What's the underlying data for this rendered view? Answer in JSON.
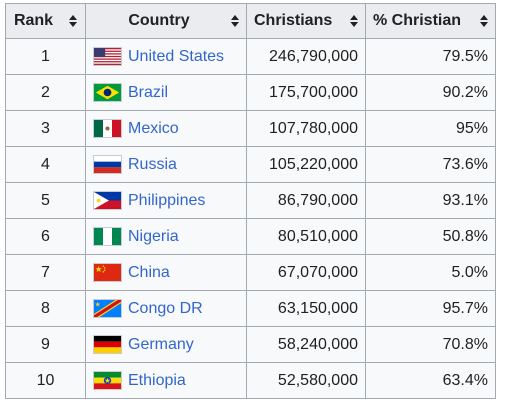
{
  "table": {
    "headers": {
      "rank": "Rank",
      "country": "Country",
      "christians": "Christians",
      "pct": "% Christian"
    },
    "rows": [
      {
        "rank": "1",
        "country": "United States",
        "christians": "246,790,000",
        "pct": "79.5%",
        "flag": "us-flag-icon"
      },
      {
        "rank": "2",
        "country": "Brazil",
        "christians": "175,700,000",
        "pct": "90.2%",
        "flag": "brazil-flag-icon"
      },
      {
        "rank": "3",
        "country": "Mexico",
        "christians": "107,780,000",
        "pct": "95%",
        "flag": "mexico-flag-icon"
      },
      {
        "rank": "4",
        "country": "Russia",
        "christians": "105,220,000",
        "pct": "73.6%",
        "flag": "russia-flag-icon"
      },
      {
        "rank": "5",
        "country": "Philippines",
        "christians": "86,790,000",
        "pct": "93.1%",
        "flag": "philippines-flag-icon"
      },
      {
        "rank": "6",
        "country": "Nigeria",
        "christians": "80,510,000",
        "pct": "50.8%",
        "flag": "nigeria-flag-icon"
      },
      {
        "rank": "7",
        "country": "China",
        "christians": "67,070,000",
        "pct": "5.0%",
        "flag": "china-flag-icon"
      },
      {
        "rank": "8",
        "country": "Congo DR",
        "christians": "63,150,000",
        "pct": "95.7%",
        "flag": "congo-dr-flag-icon"
      },
      {
        "rank": "9",
        "country": "Germany",
        "christians": "58,240,000",
        "pct": "70.8%",
        "flag": "germany-flag-icon"
      },
      {
        "rank": "10",
        "country": "Ethiopia",
        "christians": "52,580,000",
        "pct": "63.4%",
        "flag": "ethiopia-flag-icon"
      }
    ]
  },
  "colors": {
    "link": "#3366cc",
    "header_bg": "#eaecf0",
    "cell_bg": "#f8f9fa",
    "border": "#a2a9b1"
  }
}
